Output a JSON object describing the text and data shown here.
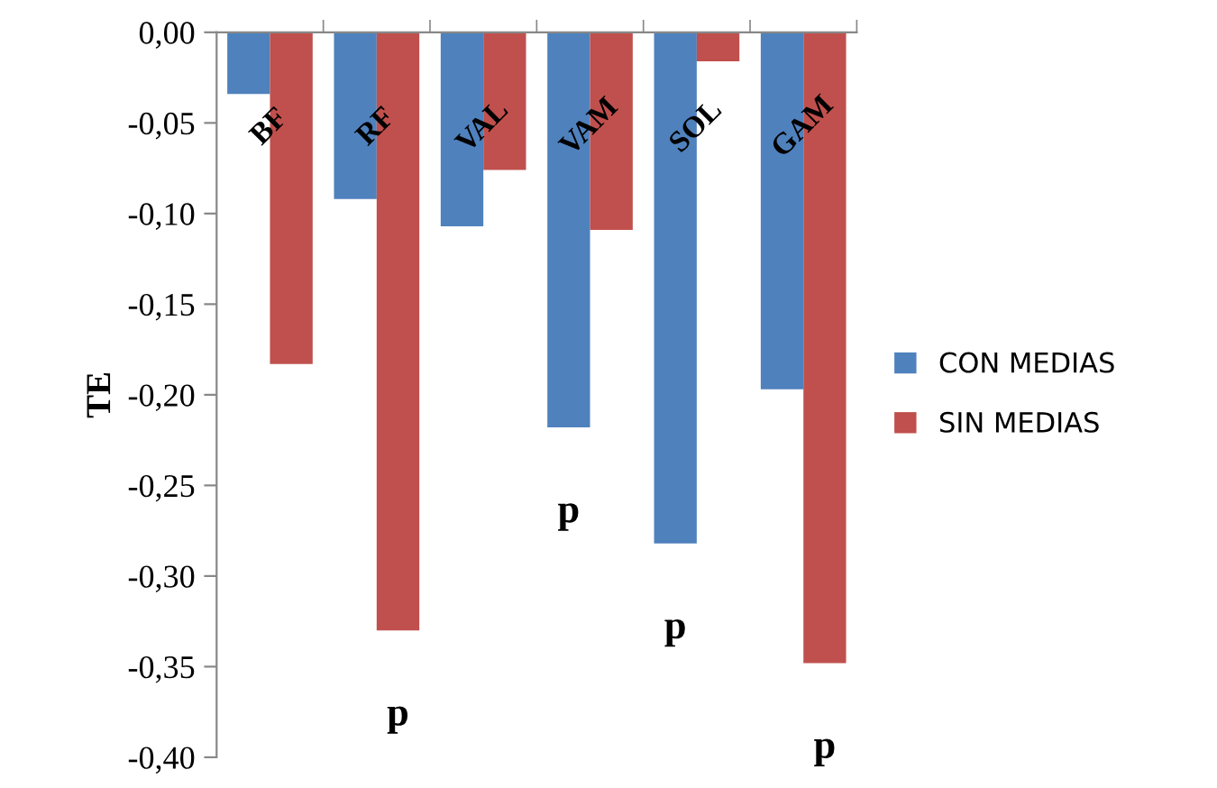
{
  "chart_data": {
    "type": "bar",
    "ylabel": "TE",
    "categories": [
      "BF",
      "RF",
      "VAL",
      "VAM",
      "SOL",
      "GAM"
    ],
    "series": [
      {
        "name": "CON MEDIAS",
        "color": "#4f81bd",
        "values": [
          -0.034,
          -0.092,
          -0.107,
          -0.218,
          -0.282,
          -0.197
        ]
      },
      {
        "name": "SIN MEDIAS",
        "color": "#c0504d",
        "values": [
          -0.183,
          -0.33,
          -0.076,
          -0.109,
          -0.016,
          -0.348
        ]
      }
    ],
    "ylim": [
      -0.4,
      0
    ],
    "yticks": [
      {
        "value": 0,
        "label": "0,00"
      },
      {
        "value": -0.05,
        "label": "-0,05"
      },
      {
        "value": -0.1,
        "label": "-0,10"
      },
      {
        "value": -0.15,
        "label": "-0,15"
      },
      {
        "value": -0.2,
        "label": "-0,20"
      },
      {
        "value": -0.25,
        "label": "-0,25"
      },
      {
        "value": -0.3,
        "label": "-0,30"
      },
      {
        "value": -0.35,
        "label": "-0,35"
      },
      {
        "value": -0.4,
        "label": "-0,40"
      }
    ],
    "annotations": [
      {
        "text": "p",
        "x": "RF",
        "y": -0.33
      },
      {
        "text": "p",
        "x": "VAM",
        "y": -0.218
      },
      {
        "text": "p",
        "x": "SOL",
        "y": -0.282
      },
      {
        "text": "p",
        "x": "GAM",
        "y": -0.348
      }
    ],
    "legend": "right",
    "grid": false
  }
}
